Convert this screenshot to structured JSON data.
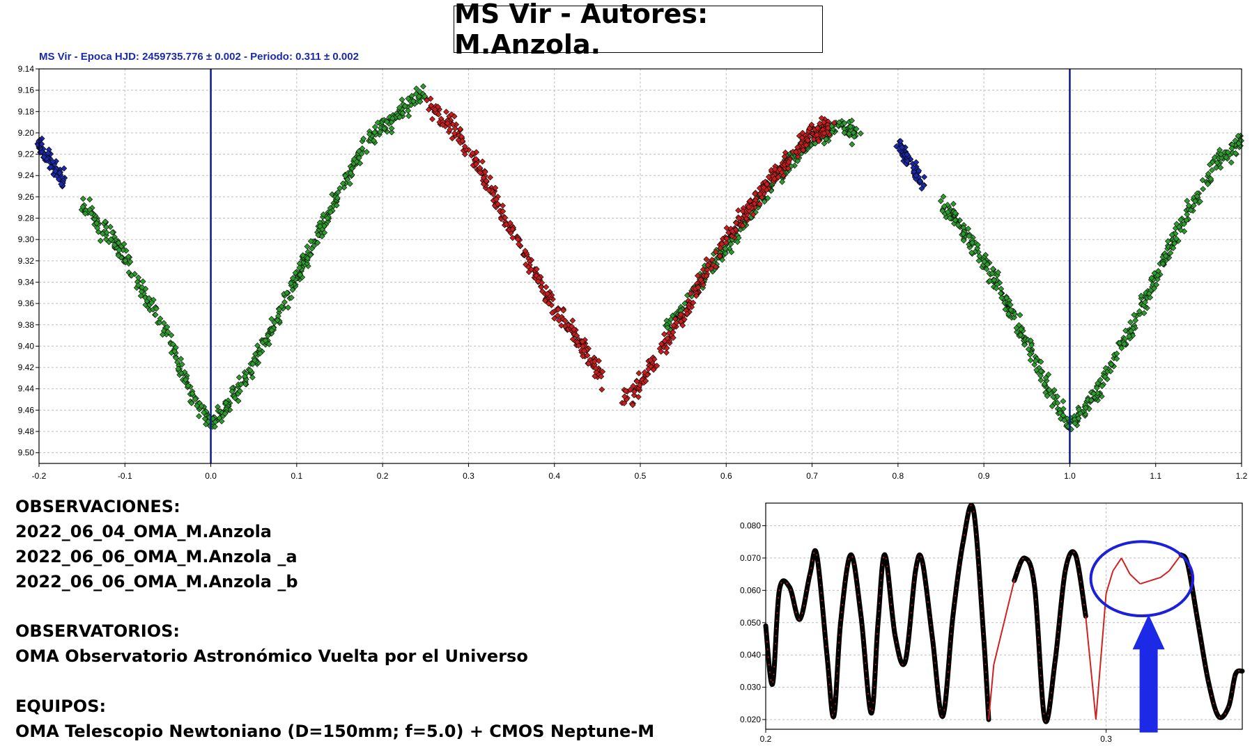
{
  "page": {
    "title": "MS Vir - Autores: M.Anzola.",
    "observaciones": {
      "heading": "OBSERVACIONES:",
      "items": [
        "2022_06_04_OMA_M.Anzola",
        "2022_06_06_OMA_M.Anzola _a",
        "2022_06_06_OMA_M.Anzola _b"
      ]
    },
    "observatorios": {
      "heading": "OBSERVATORIOS:",
      "items": [
        "OMA Observatorio Astronómico Vuelta por el Universo"
      ]
    },
    "equipos": {
      "heading": "EQUIPOS:",
      "items": [
        "OMA Telescopio Newtoniano (D=150mm; f=5.0) + CMOS Neptune-M"
      ]
    }
  },
  "chart_data": [
    {
      "type": "scatter",
      "subtitle": "MS Vir  -  Epoca HJD: 2459735.776 ± 0.002  -  Periodo: 0.311 ± 0.002",
      "xlim": [
        -0.2,
        1.2
      ],
      "ylim": [
        9.14,
        9.51
      ],
      "y_inverted": true,
      "grid": true,
      "x_ticks": [
        "-0.2",
        "-0.1",
        "0.0",
        "0.1",
        "0.2",
        "0.3",
        "0.4",
        "0.5",
        "0.6",
        "0.7",
        "0.8",
        "0.9",
        "1.0",
        "1.1",
        "1.2"
      ],
      "y_ticks": [
        "9.14",
        "9.16",
        "9.18",
        "9.20",
        "9.22",
        "9.24",
        "9.26",
        "9.28",
        "9.30",
        "9.32",
        "9.34",
        "9.36",
        "9.38",
        "9.40",
        "9.42",
        "9.44",
        "9.46",
        "9.48",
        "9.50"
      ],
      "vertical_lines": [
        0.0,
        1.0
      ],
      "vertical_line_color": "#0a1a8c",
      "series": [
        {
          "color": "#2e9b2e",
          "segments": [
            {
              "phase": [
                -0.15,
                -0.1,
                -0.05,
                -0.02,
                0.0,
                0.03,
                0.08,
                0.13,
                0.18,
                0.22,
                0.25
              ],
              "mag": [
                9.265,
                9.315,
                9.39,
                9.45,
                9.475,
                9.445,
                9.37,
                9.285,
                9.21,
                9.18,
                9.16
              ]
            },
            {
              "phase": [
                0.53,
                0.57,
                0.62,
                0.66,
                0.7,
                0.73,
                0.755
              ],
              "mag": [
                9.385,
                9.34,
                9.285,
                9.24,
                9.205,
                9.195,
                9.2
              ]
            },
            {
              "phase": [
                0.85,
                0.9,
                0.95,
                0.98,
                1.0,
                1.03,
                1.08,
                1.13,
                1.17,
                1.2
              ],
              "mag": [
                9.265,
                9.32,
                9.395,
                9.45,
                9.475,
                9.445,
                9.37,
                9.285,
                9.23,
                9.205
              ]
            }
          ]
        },
        {
          "color": "#c81e1e",
          "segments": [
            {
              "phase": [
                0.25,
                0.28,
                0.31,
                0.35,
                0.39,
                0.42,
                0.455
              ],
              "mag": [
                9.175,
                9.19,
                9.23,
                9.29,
                9.35,
                9.385,
                9.43
              ]
            },
            {
              "phase": [
                0.48,
                0.5,
                0.52,
                0.55,
                0.6,
                0.65,
                0.7,
                0.725
              ],
              "mag": [
                9.45,
                9.435,
                9.41,
                9.37,
                9.3,
                9.245,
                9.2,
                9.195
              ]
            }
          ]
        },
        {
          "color": "#1a2aa8",
          "segments": [
            {
              "phase": [
                -0.2,
                -0.185,
                -0.17
              ],
              "mag": [
                9.21,
                9.23,
                9.245
              ]
            },
            {
              "phase": [
                0.8,
                0.815,
                0.83
              ],
              "mag": [
                9.21,
                9.23,
                9.245
              ]
            }
          ]
        }
      ]
    },
    {
      "type": "line",
      "xlim": [
        0.2,
        0.34
      ],
      "ylim": [
        0.017,
        0.087
      ],
      "grid": true,
      "x_ticks": [
        "0.2",
        "0.3"
      ],
      "y_ticks": [
        "0.020",
        "0.030",
        "0.040",
        "0.050",
        "0.060",
        "0.070",
        "0.080"
      ],
      "x": [
        0.2,
        0.202,
        0.204,
        0.207,
        0.21,
        0.213,
        0.215,
        0.218,
        0.22,
        0.222,
        0.225,
        0.228,
        0.231,
        0.233,
        0.235,
        0.238,
        0.241,
        0.244,
        0.246,
        0.249,
        0.252,
        0.255,
        0.258,
        0.261,
        0.264,
        0.2655,
        0.267,
        0.27,
        0.273,
        0.276,
        0.279,
        0.282,
        0.285,
        0.288,
        0.291,
        0.294,
        0.297,
        0.3,
        0.302,
        0.3045,
        0.307,
        0.31,
        0.313,
        0.316,
        0.3185,
        0.322,
        0.324,
        0.327,
        0.33,
        0.333,
        0.336,
        0.338,
        0.34
      ],
      "y": [
        0.049,
        0.031,
        0.06,
        0.061,
        0.051,
        0.065,
        0.071,
        0.04,
        0.021,
        0.05,
        0.071,
        0.052,
        0.022,
        0.05,
        0.071,
        0.046,
        0.038,
        0.066,
        0.069,
        0.045,
        0.021,
        0.052,
        0.075,
        0.085,
        0.046,
        0.02,
        0.037,
        0.05,
        0.063,
        0.07,
        0.061,
        0.02,
        0.038,
        0.066,
        0.071,
        0.052,
        0.02,
        0.059,
        0.066,
        0.07,
        0.065,
        0.062,
        0.063,
        0.064,
        0.066,
        0.071,
        0.068,
        0.05,
        0.032,
        0.021,
        0.024,
        0.034,
        0.035
      ],
      "gap_segments": [
        [
          0.2655,
          0.2725
        ],
        [
          0.2925,
          0.3225
        ]
      ],
      "gap_color": "#d02020",
      "curve_color": "#000000",
      "highlight_ellipse": {
        "cx": 0.3105,
        "cy": 0.0636,
        "rx": 0.015,
        "ry": 0.0115,
        "color": "#1c20d8"
      },
      "arrow": {
        "x": 0.3125,
        "y_tail": 0.016,
        "y_head": 0.0525,
        "color": "#1c2ae8"
      }
    }
  ]
}
